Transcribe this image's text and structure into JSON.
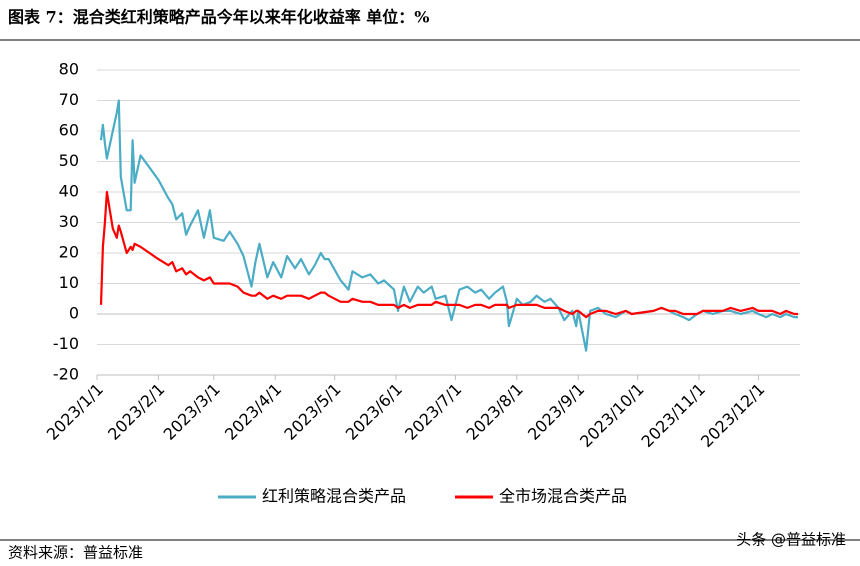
{
  "chart_data": {
    "type": "line",
    "title": "图表 7：混合类红利策略产品今年以来年化收益率 单位：%",
    "source": "资料来源：普益标准",
    "watermark": "头条 @普益标准",
    "x": [
      "2023/1/3",
      "2023/1/4",
      "2023/1/5",
      "2023/1/6",
      "2023/1/9",
      "2023/1/11",
      "2023/1/12",
      "2023/1/13",
      "2023/1/16",
      "2023/1/18",
      "2023/1/19",
      "2023/1/20",
      "2023/1/23",
      "2023/2/1",
      "2023/2/6",
      "2023/2/8",
      "2023/2/10",
      "2023/2/13",
      "2023/2/15",
      "2023/2/17",
      "2023/2/21",
      "2023/2/24",
      "2023/2/27",
      "2023/3/1",
      "2023/3/6",
      "2023/3/9",
      "2023/3/13",
      "2023/3/16",
      "2023/3/20",
      "2023/3/22",
      "2023/3/24",
      "2023/3/28",
      "2023/3/31",
      "2023/4/4",
      "2023/4/7",
      "2023/4/11",
      "2023/4/14",
      "2023/4/18",
      "2023/4/21",
      "2023/4/24",
      "2023/4/26",
      "2023/4/28",
      "2023/5/4",
      "2023/5/8",
      "2023/5/10",
      "2023/5/15",
      "2023/5/19",
      "2023/5/23",
      "2023/5/26",
      "2023/5/31",
      "2023/6/2",
      "2023/6/5",
      "2023/6/8",
      "2023/6/12",
      "2023/6/15",
      "2023/6/19",
      "2023/6/21",
      "2023/6/26",
      "2023/6/29",
      "2023/7/3",
      "2023/7/7",
      "2023/7/11",
      "2023/7/14",
      "2023/7/18",
      "2023/7/21",
      "2023/7/25",
      "2023/7/27",
      "2023/7/28",
      "2023/8/1",
      "2023/8/4",
      "2023/8/8",
      "2023/8/11",
      "2023/8/15",
      "2023/8/18",
      "2023/8/22",
      "2023/8/25",
      "2023/8/29",
      "2023/8/31",
      "2023/9/1",
      "2023/9/5",
      "2023/9/7",
      "2023/9/11",
      "2023/9/15",
      "2023/9/20",
      "2023/9/25",
      "2023/9/28",
      "2023/10/9",
      "2023/10/13",
      "2023/10/17",
      "2023/10/20",
      "2023/10/24",
      "2023/10/27",
      "2023/10/31",
      "2023/11/3",
      "2023/11/8",
      "2023/11/13",
      "2023/11/17",
      "2023/11/22",
      "2023/11/28",
      "2023/12/1",
      "2023/12/5",
      "2023/12/8",
      "2023/12/12",
      "2023/12/15",
      "2023/12/19",
      "2023/12/21"
    ],
    "series": [
      {
        "name": "红利策略混合类产品",
        "color": "#4bacc6",
        "values": [
          57,
          62,
          56,
          51,
          60,
          66,
          70,
          45,
          34,
          34,
          57,
          43,
          52,
          44,
          38,
          36,
          31,
          33,
          26,
          29,
          34,
          25,
          34,
          25,
          24,
          27,
          23,
          19,
          9,
          17,
          23,
          12,
          17,
          12,
          19,
          15,
          18,
          13,
          16,
          20,
          18,
          18,
          11,
          8,
          14,
          12,
          13,
          10,
          11,
          8,
          1,
          9,
          4,
          9,
          7,
          9,
          5,
          6,
          -2,
          8,
          9,
          7,
          8,
          5,
          7,
          9,
          4,
          -4,
          5,
          3,
          4,
          6,
          4,
          5,
          2,
          -2,
          1,
          -4,
          1,
          -12,
          1,
          2,
          0,
          -1,
          1,
          0,
          1,
          2,
          1,
          0,
          -1,
          -2,
          0,
          1,
          0,
          1,
          1,
          0,
          1,
          0,
          -1,
          0,
          -1,
          0,
          -1,
          -1
        ]
      },
      {
        "name": "全市场混合类产品",
        "color": "#ff0000",
        "values": [
          3,
          22,
          30,
          40,
          28,
          25,
          29,
          27,
          20,
          22,
          21,
          23,
          22,
          18,
          16,
          17,
          14,
          15,
          13,
          14,
          12,
          11,
          12,
          10,
          10,
          10,
          9,
          7,
          6,
          6,
          7,
          5,
          6,
          5,
          6,
          6,
          6,
          5,
          6,
          7,
          7,
          6,
          4,
          4,
          5,
          4,
          4,
          3,
          3,
          3,
          2,
          3,
          2,
          3,
          3,
          3,
          4,
          3,
          3,
          3,
          2,
          3,
          3,
          2,
          3,
          3,
          3,
          2,
          3,
          3,
          3,
          3,
          2,
          2,
          2,
          1,
          0,
          1,
          1,
          -1,
          0,
          1,
          1,
          0,
          1,
          0,
          1,
          2,
          1,
          1,
          0,
          0,
          0,
          1,
          1,
          1,
          2,
          1,
          2,
          1,
          1,
          1,
          0,
          1,
          0,
          0
        ]
      }
    ],
    "xlim": [
      "2023/1/1",
      "2023/12/22"
    ],
    "xticks": [
      "2023/1/1",
      "2023/2/1",
      "2023/3/1",
      "2023/4/1",
      "2023/5/1",
      "2023/6/1",
      "2023/7/1",
      "2023/8/1",
      "2023/9/1",
      "2023/10/1",
      "2023/11/1",
      "2023/12/1"
    ],
    "ylim": [
      -20,
      80
    ],
    "yticks": [
      -20,
      -10,
      0,
      10,
      20,
      30,
      40,
      50,
      60,
      70,
      80
    ],
    "grid": true
  }
}
